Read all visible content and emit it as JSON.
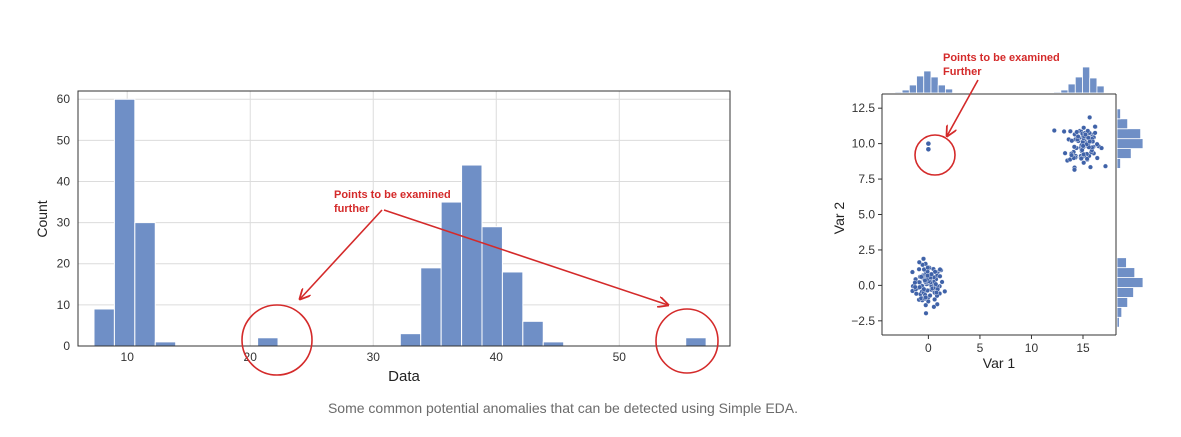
{
  "caption": "Some common potential anomalies that can be detected using Simple EDA.",
  "colors": {
    "bar": "#6f8fc6",
    "bar_edge": "#ffffff",
    "grid": "#dcdcdc",
    "annotation": "#d42a2a",
    "point": "#3f62a8"
  },
  "chart_data": [
    {
      "type": "bar",
      "xlabel": "Data",
      "ylabel": "Count",
      "xlim": [
        6,
        59
      ],
      "ylim": [
        0,
        62
      ],
      "xticks": [
        10,
        20,
        30,
        40,
        50
      ],
      "yticks": [
        0,
        10,
        20,
        30,
        40,
        50,
        60
      ],
      "grid": true,
      "bin_width": 1.66,
      "bins": [
        {
          "start": 7.3,
          "count": 9
        },
        {
          "start": 8.96,
          "count": 60
        },
        {
          "start": 10.62,
          "count": 30
        },
        {
          "start": 12.28,
          "count": 1
        },
        {
          "start": 20.6,
          "count": 2
        },
        {
          "start": 32.2,
          "count": 3
        },
        {
          "start": 33.86,
          "count": 19
        },
        {
          "start": 35.52,
          "count": 35
        },
        {
          "start": 37.18,
          "count": 44
        },
        {
          "start": 38.84,
          "count": 29
        },
        {
          "start": 40.5,
          "count": 18
        },
        {
          "start": 42.16,
          "count": 6
        },
        {
          "start": 43.82,
          "count": 1
        },
        {
          "start": 55.4,
          "count": 2
        }
      ],
      "annotation": {
        "text_line1": "Points to be examined",
        "text_line2": "further",
        "circled_x": [
          21.5,
          56.2
        ]
      }
    },
    {
      "type": "scatter",
      "xlabel": "Var 1",
      "ylabel": "Var 2",
      "xlim": [
        -4.5,
        18.2
      ],
      "ylim": [
        -3.5,
        13.5
      ],
      "xticks": [
        "0",
        "5",
        "10",
        "15"
      ],
      "xtick_values": [
        0,
        5,
        10,
        15
      ],
      "yticks": [
        "−2.5",
        "0.0",
        "2.5",
        "5.0",
        "7.5",
        "10.0",
        "12.5"
      ],
      "ytick_values": [
        -2.5,
        0,
        2.5,
        5,
        7.5,
        10,
        12.5
      ],
      "grid": false,
      "clusters": [
        {
          "center": [
            0,
            0
          ],
          "spread": 0.75,
          "count": 100
        },
        {
          "center": [
            15,
            10
          ],
          "spread": 0.8,
          "count": 100
        }
      ],
      "outliers": [
        [
          0,
          10
        ],
        [
          0,
          9.6
        ]
      ],
      "marginal_x_hist": [
        {
          "center": -2.9,
          "count": 1
        },
        {
          "center": -2.2,
          "count": 3
        },
        {
          "center": -1.5,
          "count": 8
        },
        {
          "center": -0.8,
          "count": 17
        },
        {
          "center": -0.1,
          "count": 22
        },
        {
          "center": 0.6,
          "count": 16
        },
        {
          "center": 1.3,
          "count": 8
        },
        {
          "center": 2.0,
          "count": 4
        },
        {
          "center": 12.5,
          "count": 1
        },
        {
          "center": 13.2,
          "count": 3
        },
        {
          "center": 13.9,
          "count": 9
        },
        {
          "center": 14.6,
          "count": 16
        },
        {
          "center": 15.3,
          "count": 26
        },
        {
          "center": 16.0,
          "count": 15
        },
        {
          "center": 16.7,
          "count": 7
        }
      ],
      "marginal_y_hist": [
        {
          "center": -2.6,
          "count": 2
        },
        {
          "center": -1.9,
          "count": 4
        },
        {
          "center": -1.2,
          "count": 9
        },
        {
          "center": -0.5,
          "count": 14
        },
        {
          "center": 0.2,
          "count": 22
        },
        {
          "center": 0.9,
          "count": 15
        },
        {
          "center": 1.6,
          "count": 8
        },
        {
          "center": 8.6,
          "count": 3
        },
        {
          "center": 9.3,
          "count": 12
        },
        {
          "center": 10.0,
          "count": 22
        },
        {
          "center": 10.7,
          "count": 20
        },
        {
          "center": 11.4,
          "count": 9
        },
        {
          "center": 12.1,
          "count": 3
        }
      ],
      "annotation": {
        "text_line1": "Points to be examined",
        "text_line2": "Further"
      }
    }
  ]
}
